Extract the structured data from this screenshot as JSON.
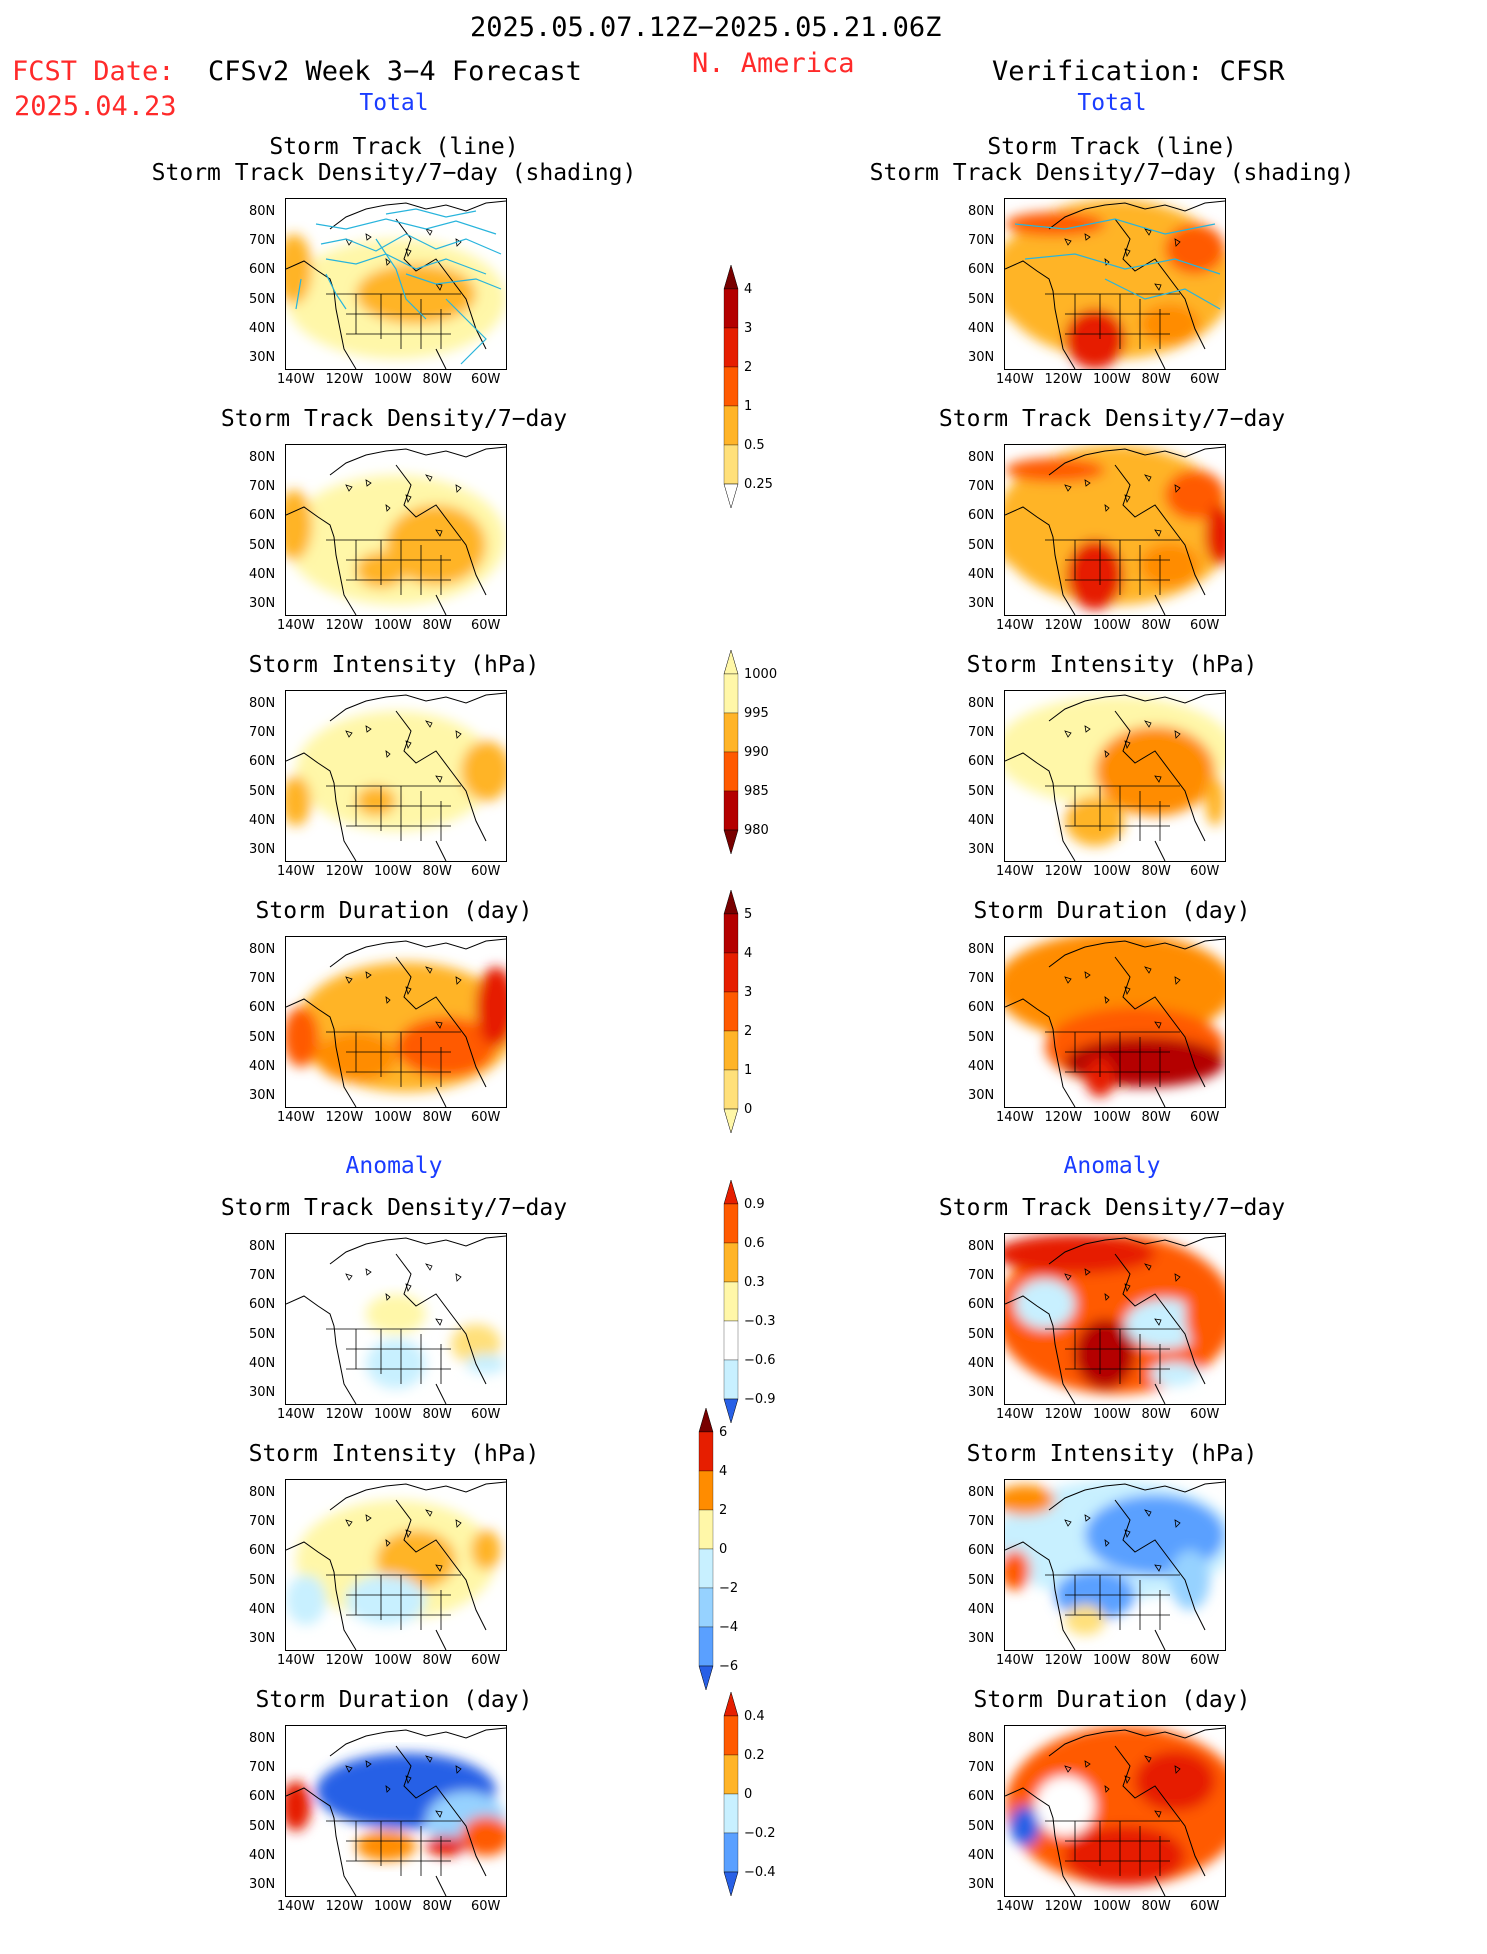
{
  "header": {
    "period": "2025.05.07.12Z−2025.05.21.06Z",
    "region": "N. America",
    "fcst_label": "FCST Date:",
    "fcst_date": "2025.04.23",
    "model": "CFSv2 Week 3−4 Forecast",
    "verification": "Verification: CFSR"
  },
  "sections": {
    "total_left": "Total",
    "total_right": "Total",
    "anom_left": "Anomaly",
    "anom_right": "Anomaly"
  },
  "panel_titles": {
    "track_line": "Storm Track (line)",
    "track_shading": "Storm Track Density/7−day (shading)",
    "density": "Storm Track Density/7−day",
    "intensity": "Storm Intensity (hPa)",
    "duration": "Storm Duration (day)"
  },
  "chart_data": {
    "type": "heatmap",
    "y_ticks": [
      "80N",
      "70N",
      "60N",
      "50N",
      "40N",
      "30N"
    ],
    "x_ticks": [
      "140W",
      "120W",
      "100W",
      "80W",
      "60W"
    ],
    "colors": {
      "pos": [
        "#fff7a8",
        "#ffe07a",
        "#ffb428",
        "#ff8c00",
        "#ff5a00",
        "#e61e00",
        "#b40000",
        "#780000"
      ],
      "neg": [
        "#c8f0ff",
        "#96d2ff",
        "#5aa0ff",
        "#2860e6",
        "#143cc8"
      ],
      "track": "#28b4dc"
    },
    "colorbars": [
      {
        "name": "Total Density",
        "values": [
          "4",
          "3",
          "2",
          "1",
          "0.5",
          "0.25"
        ]
      },
      {
        "name": "Total Intensity",
        "values": [
          "1000",
          "995",
          "990",
          "985",
          "980"
        ]
      },
      {
        "name": "Total Duration",
        "values": [
          "5",
          "4",
          "3",
          "2",
          "1",
          "0"
        ]
      },
      {
        "name": "Anomaly Density",
        "values": [
          "0.9",
          "0.6",
          "0.3",
          "−0.3",
          "−0.6",
          "−0.9"
        ]
      },
      {
        "name": "Anomaly Intensity",
        "values": [
          "6",
          "4",
          "2",
          "0",
          "−2",
          "−4",
          "−6"
        ]
      },
      {
        "name": "Anomaly Duration",
        "values": [
          "0.4",
          "0.2",
          "0",
          "−0.2",
          "−0.4"
        ]
      }
    ]
  }
}
